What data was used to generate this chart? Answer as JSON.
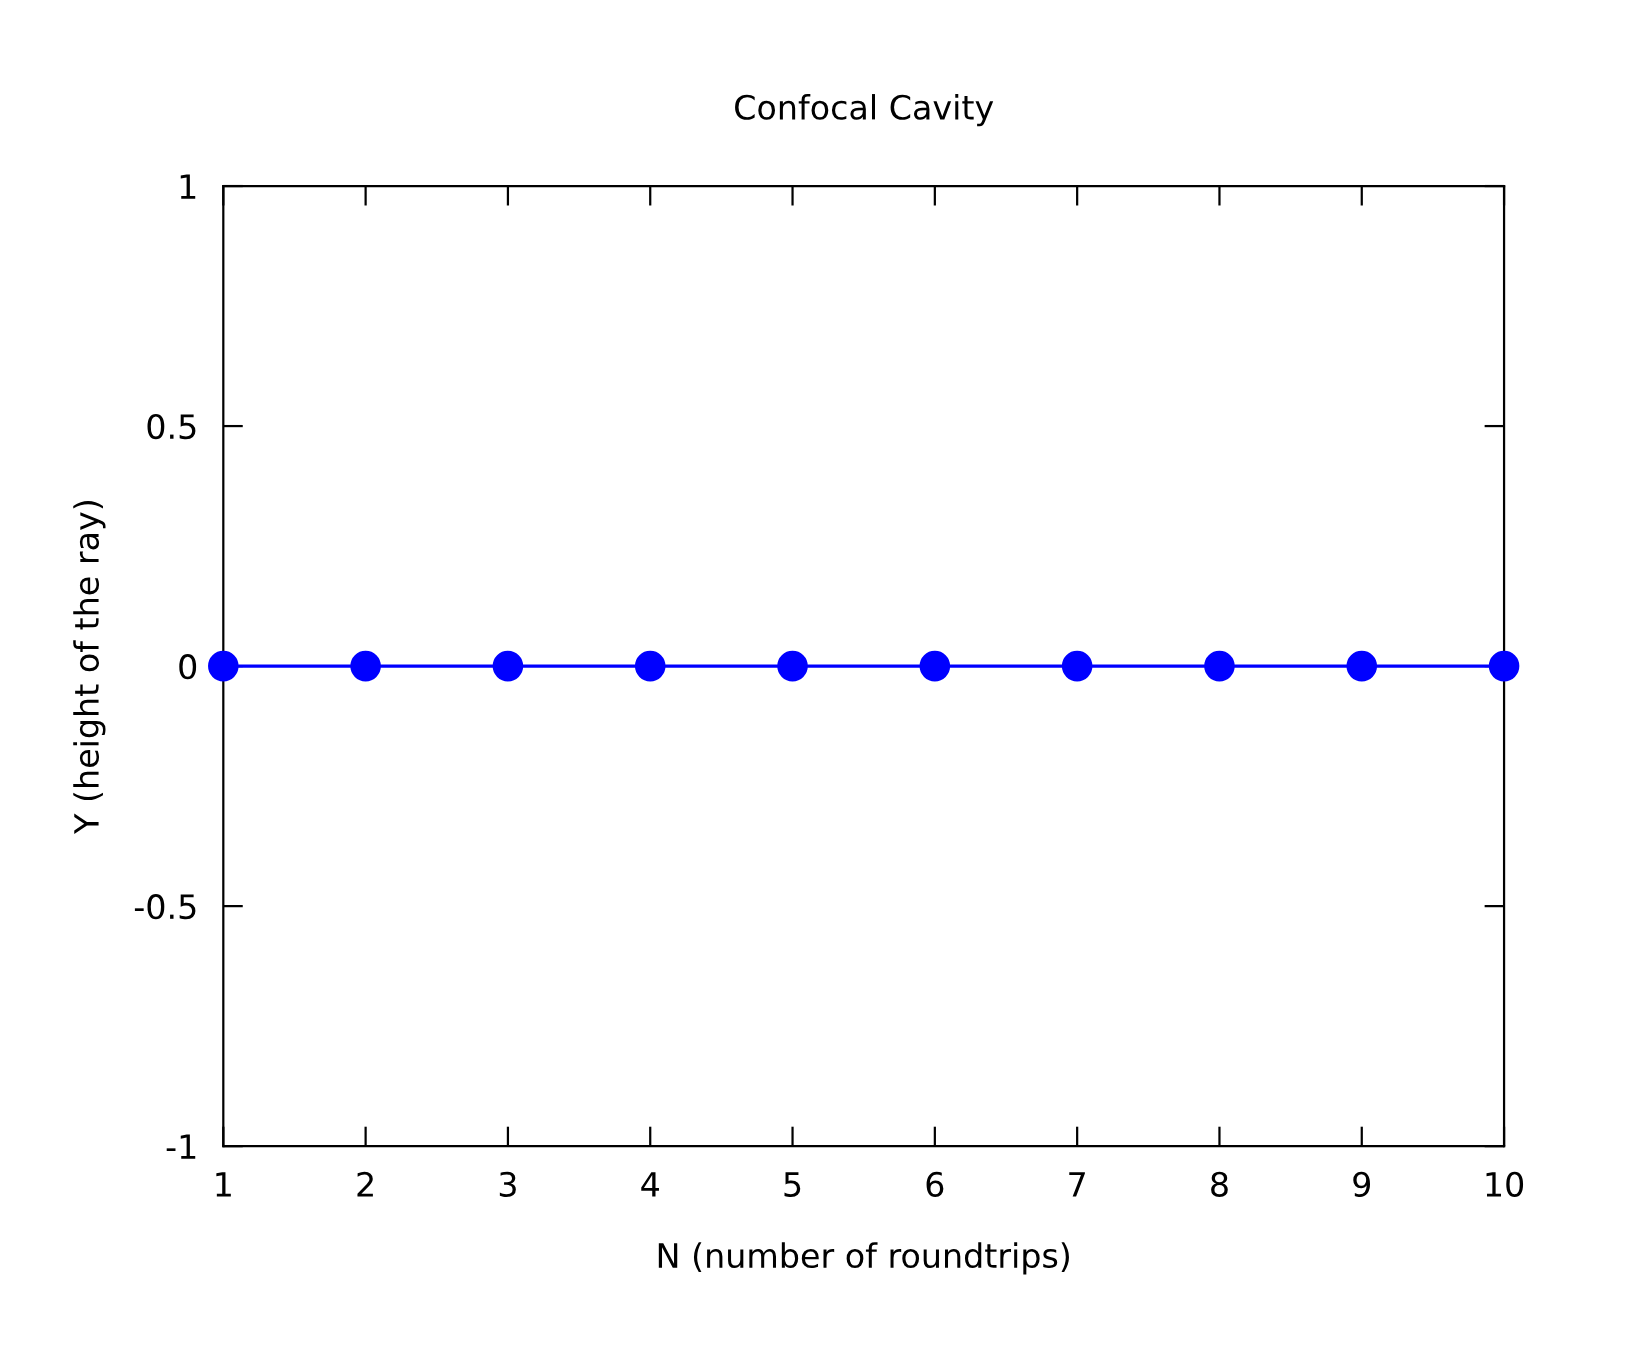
{
  "chart_data": {
    "type": "line",
    "title": "Confocal Cavity",
    "xlabel": "N (number of roundtrips)",
    "ylabel": "Y (height of the ray)",
    "x": [
      1,
      2,
      3,
      4,
      5,
      6,
      7,
      8,
      9,
      10
    ],
    "series": [
      {
        "color": "#0000ff",
        "values": [
          0,
          0,
          0,
          0,
          0,
          0,
          0,
          0,
          0,
          0
        ]
      }
    ],
    "xlim": [
      1,
      10
    ],
    "ylim": [
      -1,
      1
    ],
    "xticks": [
      1,
      2,
      3,
      4,
      5,
      6,
      7,
      8,
      9,
      10
    ],
    "yticks": [
      -1,
      -0.5,
      0,
      0.5,
      1
    ],
    "marker": "circle",
    "line_style": "solid",
    "grid": false,
    "legend": false
  }
}
